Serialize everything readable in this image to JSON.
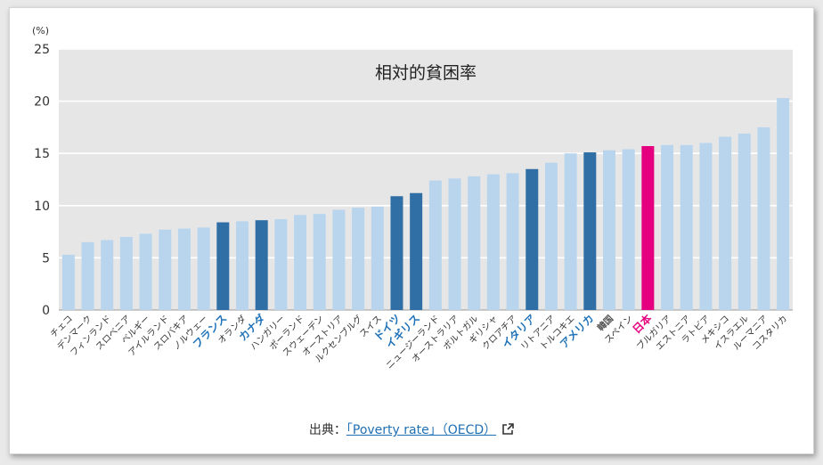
{
  "chart_data": {
    "type": "bar",
    "title": "相対的貧困率",
    "unit_label": "(%)",
    "ylim": [
      0,
      25
    ],
    "yticks": [
      0,
      5,
      10,
      15,
      20,
      25
    ],
    "grid": true,
    "categories": [
      "チェコ",
      "デンマーク",
      "フィンランド",
      "スロベニア",
      "ベルギー",
      "アイルランド",
      "スロバキア",
      "ノルウェー",
      "フランス",
      "オランダ",
      "カナダ",
      "ハンガリー",
      "ポーランド",
      "スウェーデン",
      "オーストリア",
      "ルクセンブルグ",
      "スイス",
      "ドイツ",
      "イギリス",
      "ニュージーランド",
      "オーストラリア",
      "ポルトガル",
      "ギリシャ",
      "クロアチア",
      "イタリア",
      "リトアニア",
      "トルコキエ",
      "アメリカ",
      "韓国",
      "スペイン",
      "日本",
      "ブルガリア",
      "エストニア",
      "ラトビア",
      "メキシコ",
      "イスラエル",
      "ルーマニア",
      "コスタリカ"
    ],
    "values": [
      5.3,
      6.5,
      6.7,
      7.0,
      7.3,
      7.7,
      7.8,
      7.9,
      8.4,
      8.5,
      8.6,
      8.7,
      9.1,
      9.2,
      9.6,
      9.8,
      9.9,
      10.9,
      11.2,
      12.4,
      12.6,
      12.8,
      13.0,
      13.1,
      13.5,
      14.1,
      15.0,
      15.1,
      15.3,
      15.4,
      15.7,
      15.8,
      15.8,
      16.0,
      16.6,
      16.9,
      17.5,
      20.3
    ],
    "highlight": {
      "フランス": "G7",
      "カナダ": "G7",
      "ドイツ": "G7",
      "イギリス": "G7",
      "イタリア": "G7",
      "アメリカ": "G7",
      "日本": "japan"
    },
    "colors": {
      "default_bar": "#b9d5ee",
      "g7_bar": "#2f6fa6",
      "japan_bar": "#e4007f",
      "plot_background": "#e6e6e6",
      "g7_label": "#1f72b8",
      "japan_label": "#e4007f",
      "label": "#333333",
      "korea_label": "#555555"
    }
  },
  "source": {
    "prefix": "出典：",
    "link_text": "「Poverty rate」（OECD）",
    "icon": "external-link-icon"
  }
}
